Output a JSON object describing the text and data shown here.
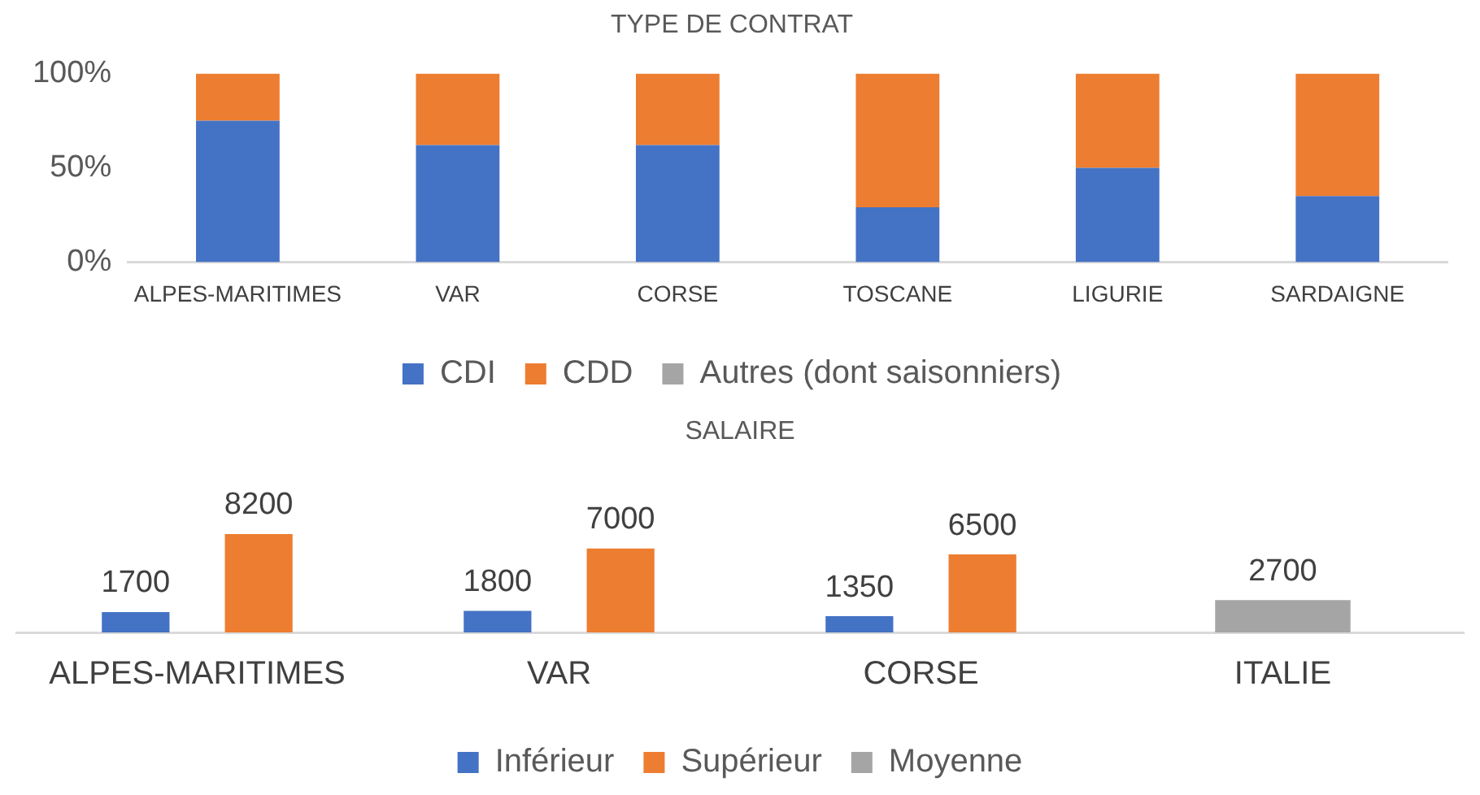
{
  "chart_data": [
    {
      "type": "bar",
      "title": "TYPE DE CONTRAT",
      "stacked": true,
      "categories": [
        "ALPES-MARITIMES",
        "VAR",
        "CORSE",
        "TOSCANE",
        "LIGURIE",
        "SARDAIGNE"
      ],
      "series": [
        {
          "name": "CDI",
          "color": "#4472c4",
          "values": [
            75,
            62,
            62,
            29,
            50,
            35
          ]
        },
        {
          "name": "CDD",
          "color": "#ed7d31",
          "values": [
            25,
            38,
            38,
            71,
            50,
            65
          ]
        },
        {
          "name": "Autres (dont saisonniers)",
          "color": "#a5a5a5",
          "values": [
            0,
            0,
            0,
            0,
            0,
            0
          ]
        }
      ],
      "ylim": [
        0,
        100
      ],
      "yticks": [
        {
          "value": 0,
          "label": "0%"
        },
        {
          "value": 50,
          "label": "50%"
        },
        {
          "value": 100,
          "label": "100%"
        }
      ],
      "grid": false,
      "legend": "bottom"
    },
    {
      "type": "bar",
      "title": "SALAIRE",
      "categories": [
        "ALPES-MARITIMES",
        "VAR",
        "CORSE",
        "ITALIE"
      ],
      "series": [
        {
          "name": "Inférieur",
          "color": "#4472c4",
          "values": [
            1700,
            1800,
            1350,
            null
          ]
        },
        {
          "name": "Supérieur",
          "color": "#ed7d31",
          "values": [
            8200,
            7000,
            6500,
            null
          ]
        },
        {
          "name": "Moyenne",
          "color": "#a5a5a5",
          "values": [
            null,
            null,
            null,
            2700
          ]
        }
      ],
      "data_labels": true,
      "tick_labels": "x",
      "grid": false,
      "legend": "bottom"
    }
  ]
}
